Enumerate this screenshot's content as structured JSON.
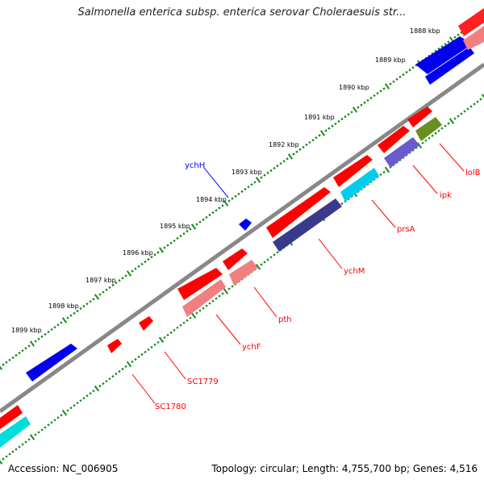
{
  "title": "Salmonella enterica subsp. enterica serovar Choleraesuis str...",
  "footer": {
    "accession": "Accession: NC_006905",
    "summary": "Topology: circular; Length: 4,755,700 bp; Genes: 4,516"
  },
  "colors": {
    "backbone": "#888888",
    "tick": "#1a8a1a",
    "forward_cds": "#ff0000",
    "forward_rna": "#0000ee",
    "reverse_cds": "#f08080",
    "reverse_a": "#00dddd",
    "reverse_b": "#3a3a8c",
    "reverse_c": "#6a5acd",
    "reverse_d": "#6b8e23",
    "label_red": "#ff0000",
    "label_blue": "#0000ff"
  },
  "kbp_labels": [
    "1888 kbp",
    "1889 kbp",
    "1890 kbp",
    "1891 kbp",
    "1892 kbp",
    "1893 kbp",
    "1894 kbp",
    "1895 kbp",
    "1896 kbp",
    "1897 kbp",
    "1898 kbp",
    "1899 kbp"
  ],
  "gene_labels": {
    "ychH": "ychH",
    "lolB": "lolB",
    "ipk": "ipk",
    "prsA": "prsA",
    "ychM": "ychM",
    "pth": "pth",
    "ychF": "ychF",
    "SC1779": "SC1779",
    "SC1780": "SC1780"
  }
}
